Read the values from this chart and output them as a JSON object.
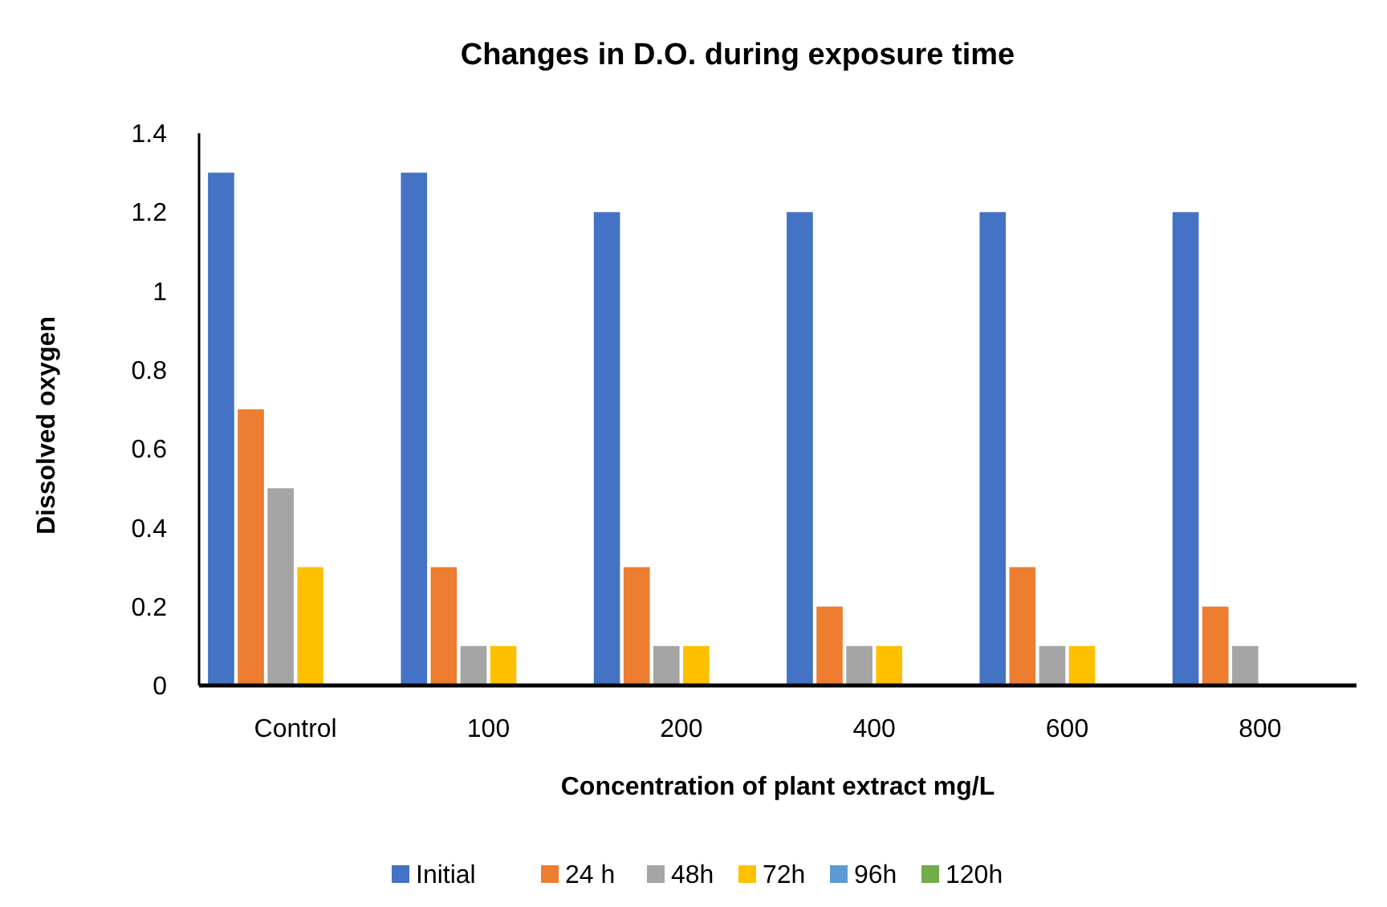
{
  "chart_data": {
    "type": "bar",
    "title": "Changes in D.O. during exposure time",
    "xlabel": "Concentration of plant extract mg/L",
    "ylabel": "Dissolved oxygen",
    "categories": [
      "Control",
      "100",
      "200",
      "400",
      "600",
      "800"
    ],
    "series": [
      {
        "name": "Initial",
        "color": "#4472c4",
        "values": [
          1.3,
          1.3,
          1.2,
          1.2,
          1.2,
          1.2
        ]
      },
      {
        "name": "24 h",
        "color": "#ed7d31",
        "values": [
          0.7,
          0.3,
          0.3,
          0.2,
          0.3,
          0.2
        ]
      },
      {
        "name": "48h",
        "color": "#a5a5a5",
        "values": [
          0.5,
          0.1,
          0.1,
          0.1,
          0.1,
          0.1
        ]
      },
      {
        "name": "72h",
        "color": "#ffc000",
        "values": [
          0.3,
          0.1,
          0.1,
          0.1,
          0.1,
          0
        ]
      },
      {
        "name": "96h",
        "color": "#5b9bd5",
        "values": [
          0,
          0,
          0,
          0,
          0,
          0
        ]
      },
      {
        "name": "120h",
        "color": "#70ad47",
        "values": [
          0,
          0,
          0,
          0,
          0,
          0
        ]
      }
    ],
    "ylim": [
      0,
      1.4
    ],
    "yticks": [
      0,
      0.2,
      0.4,
      0.6,
      0.8,
      1,
      1.2,
      1.4
    ],
    "grid": false,
    "legend": "bottom"
  }
}
